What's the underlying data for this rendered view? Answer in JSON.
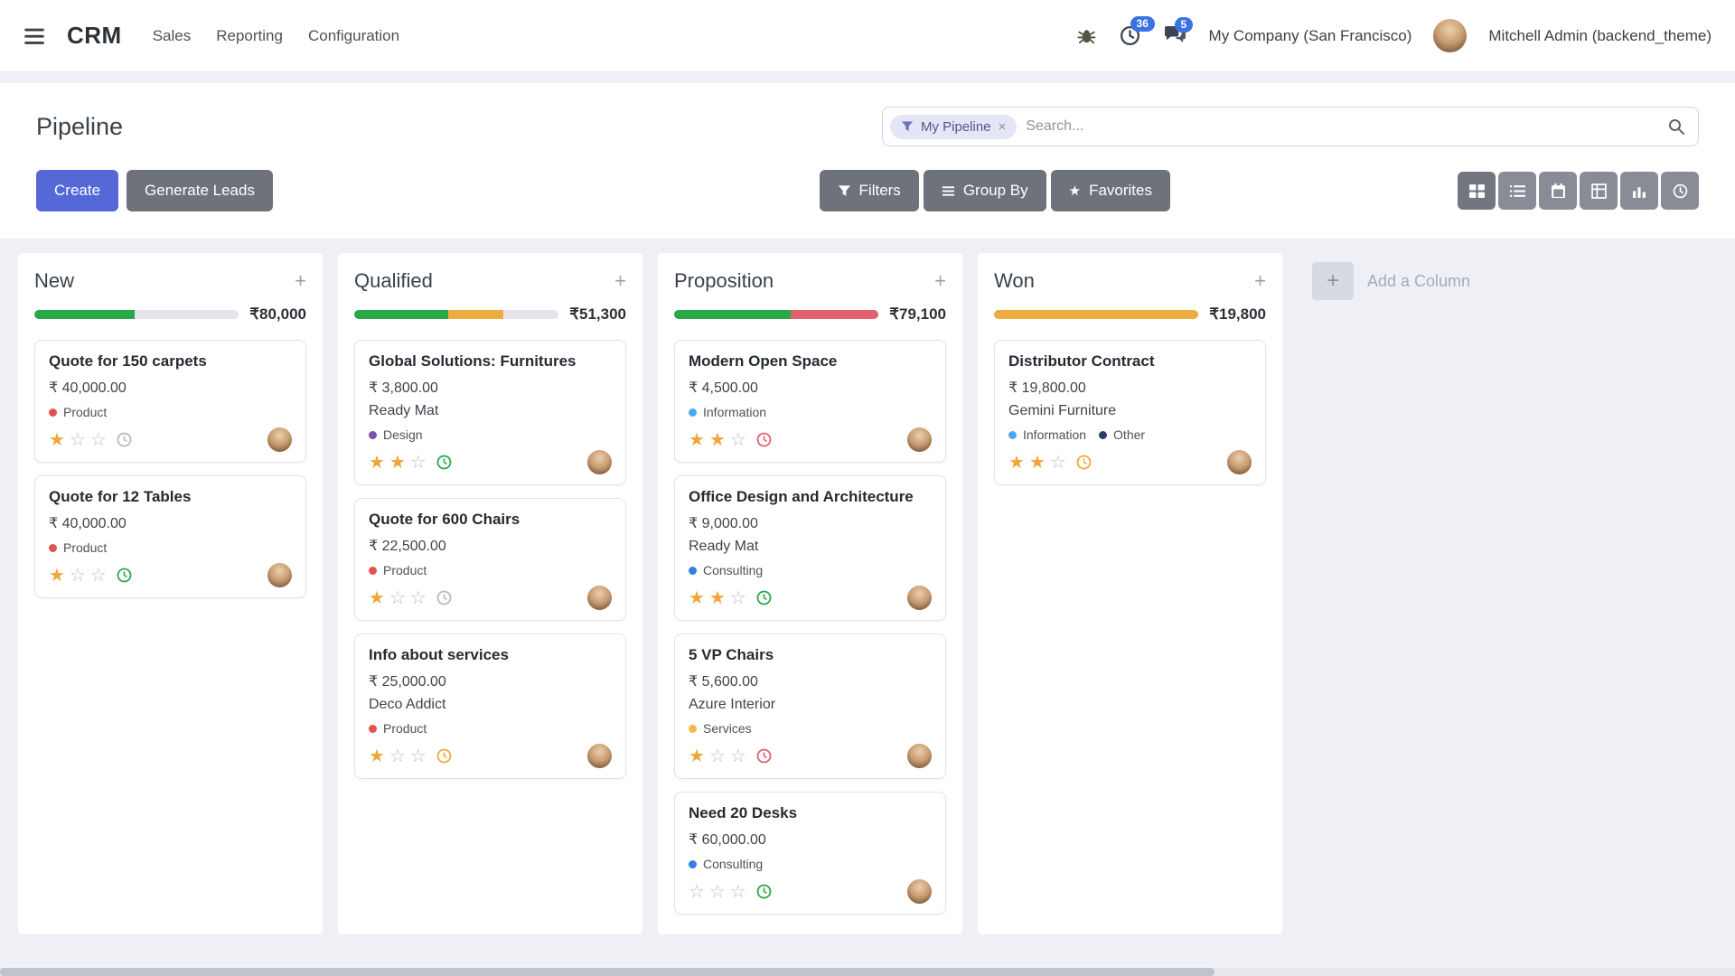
{
  "colors": {
    "primary": "#5468d8",
    "green": "#29a84a",
    "orange": "#eeab3e",
    "red": "#e4606d",
    "muted": "#e4e6ec",
    "gray": "#b4b8c0",
    "product": "#e0544c",
    "design": "#8250a0",
    "information": "#4aa9e8",
    "consulting": "#2f80e0",
    "services": "#f2b84b",
    "other": "#2c3e66"
  },
  "icons": {
    "plus": "+",
    "close": "×",
    "star_filled": "★",
    "star_empty": "☆"
  },
  "navbar": {
    "brand": "CRM",
    "menus": [
      "Sales",
      "Reporting",
      "Configuration"
    ],
    "activity_badge": "36",
    "message_badge": "5",
    "company": "My Company (San Francisco)",
    "user": "Mitchell Admin (backend_theme)"
  },
  "control_panel": {
    "title": "Pipeline",
    "search": {
      "facet_label": "My Pipeline",
      "placeholder": "Search..."
    },
    "create_label": "Create",
    "generate_leads_label": "Generate Leads",
    "filters_label": "Filters",
    "group_by_label": "Group By",
    "favorites_label": "Favorites"
  },
  "board": {
    "add_column_label": "Add a Column",
    "columns": [
      {
        "name": "New",
        "total": "₹80,000",
        "progress": [
          {
            "color": "green",
            "pct": 49
          },
          {
            "color": "muted",
            "pct": 51
          }
        ],
        "cards": [
          {
            "title": "Quote for 150 carpets",
            "amount": "₹ 40,000.00",
            "partner": "",
            "tags": [
              {
                "label": "Product",
                "color": "product"
              }
            ],
            "stars": 1,
            "clock": "gray"
          },
          {
            "title": "Quote for 12 Tables",
            "amount": "₹ 40,000.00",
            "partner": "",
            "tags": [
              {
                "label": "Product",
                "color": "product"
              }
            ],
            "stars": 1,
            "clock": "green"
          }
        ]
      },
      {
        "name": "Qualified",
        "total": "₹51,300",
        "progress": [
          {
            "color": "green",
            "pct": 46
          },
          {
            "color": "orange",
            "pct": 27
          },
          {
            "color": "muted",
            "pct": 27
          }
        ],
        "cards": [
          {
            "title": "Global Solutions: Furnitures",
            "amount": "₹ 3,800.00",
            "partner": "Ready Mat",
            "tags": [
              {
                "label": "Design",
                "color": "design"
              }
            ],
            "stars": 2,
            "clock": "green"
          },
          {
            "title": "Quote for 600 Chairs",
            "amount": "₹ 22,500.00",
            "partner": "",
            "tags": [
              {
                "label": "Product",
                "color": "product"
              }
            ],
            "stars": 1,
            "clock": "gray"
          },
          {
            "title": "Info about services",
            "amount": "₹ 25,000.00",
            "partner": "Deco Addict",
            "tags": [
              {
                "label": "Product",
                "color": "product"
              }
            ],
            "stars": 1,
            "clock": "orange"
          }
        ]
      },
      {
        "name": "Proposition",
        "total": "₹79,100",
        "progress": [
          {
            "color": "green",
            "pct": 57
          },
          {
            "color": "red",
            "pct": 43
          }
        ],
        "cards": [
          {
            "title": "Modern Open Space",
            "amount": "₹ 4,500.00",
            "partner": "",
            "tags": [
              {
                "label": "Information",
                "color": "information"
              }
            ],
            "stars": 2,
            "clock": "red"
          },
          {
            "title": "Office Design and Architecture",
            "amount": "₹ 9,000.00",
            "partner": "Ready Mat",
            "tags": [
              {
                "label": "Consulting",
                "color": "consulting"
              }
            ],
            "stars": 2,
            "clock": "green"
          },
          {
            "title": "5 VP Chairs",
            "amount": "₹ 5,600.00",
            "partner": "Azure Interior",
            "tags": [
              {
                "label": "Services",
                "color": "services"
              }
            ],
            "stars": 1,
            "clock": "red"
          },
          {
            "title": "Need 20 Desks",
            "amount": "₹ 60,000.00",
            "partner": "",
            "tags": [
              {
                "label": "Consulting",
                "color": "consulting"
              }
            ],
            "stars": 0,
            "clock": "green"
          }
        ]
      },
      {
        "name": "Won",
        "total": "₹19,800",
        "progress": [
          {
            "color": "orange",
            "pct": 100
          }
        ],
        "cards": [
          {
            "title": "Distributor Contract",
            "amount": "₹ 19,800.00",
            "partner": "Gemini Furniture",
            "tags": [
              {
                "label": "Information",
                "color": "information"
              },
              {
                "label": "Other",
                "color": "other"
              }
            ],
            "stars": 2,
            "clock": "orange"
          }
        ]
      }
    ]
  }
}
